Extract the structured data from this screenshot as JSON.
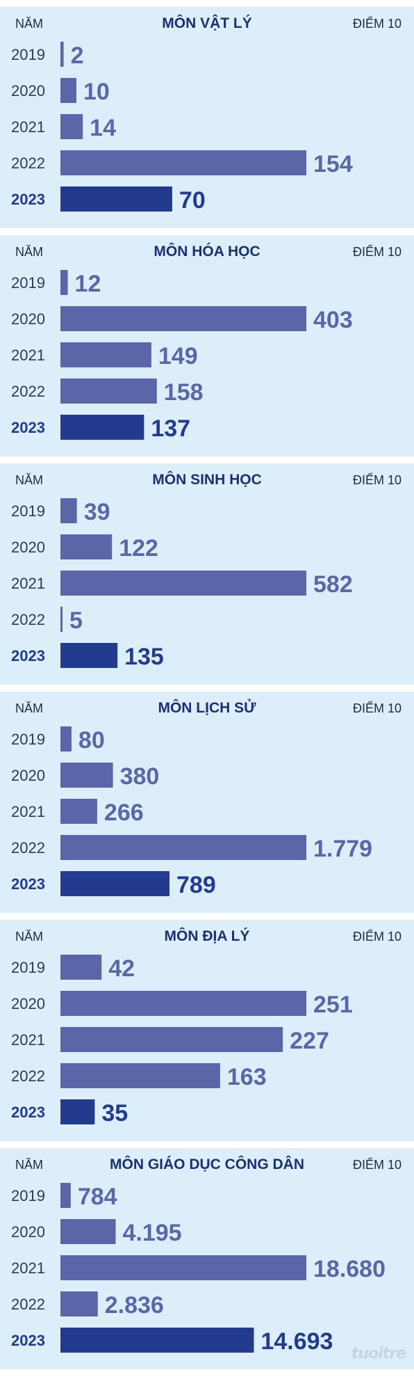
{
  "header": {
    "left": "NĂM",
    "right": "ĐIỂM 10"
  },
  "colors": {
    "bar": "#5b66a8",
    "highlight": "#223b8e",
    "background": "#dceef9",
    "label": "#5b66a8",
    "highlight_label": "#223b8e",
    "year": "#2f3a57"
  },
  "logo": "tuoitre",
  "chart_data": [
    {
      "type": "bar",
      "orientation": "horizontal",
      "title": "MÔN VẬT LÝ",
      "categories": [
        "2019",
        "2020",
        "2021",
        "2022",
        "2023"
      ],
      "values": [
        2,
        10,
        14,
        154,
        70
      ],
      "labels": [
        "2",
        "10",
        "14",
        "154",
        "70"
      ],
      "highlight": "2023",
      "xlim": [
        0,
        154
      ]
    },
    {
      "type": "bar",
      "orientation": "horizontal",
      "title": "MÔN HÓA HỌC",
      "categories": [
        "2019",
        "2020",
        "2021",
        "2022",
        "2023"
      ],
      "values": [
        12,
        403,
        149,
        158,
        137
      ],
      "labels": [
        "12",
        "403",
        "149",
        "158",
        "137"
      ],
      "highlight": "2023",
      "xlim": [
        0,
        403
      ]
    },
    {
      "type": "bar",
      "orientation": "horizontal",
      "title": "MÔN SINH HỌC",
      "categories": [
        "2019",
        "2020",
        "2021",
        "2022",
        "2023"
      ],
      "values": [
        39,
        122,
        582,
        5,
        135
      ],
      "labels": [
        "39",
        "122",
        "582",
        "5",
        "135"
      ],
      "highlight": "2023",
      "xlim": [
        0,
        582
      ]
    },
    {
      "type": "bar",
      "orientation": "horizontal",
      "title": "MÔN LỊCH SỬ",
      "categories": [
        "2019",
        "2020",
        "2021",
        "2022",
        "2023"
      ],
      "values": [
        80,
        380,
        266,
        1779,
        789
      ],
      "labels": [
        "80",
        "380",
        "266",
        "1.779",
        "789"
      ],
      "highlight": "2023",
      "xlim": [
        0,
        1779
      ]
    },
    {
      "type": "bar",
      "orientation": "horizontal",
      "title": "MÔN ĐỊA LÝ",
      "categories": [
        "2019",
        "2020",
        "2021",
        "2022",
        "2023"
      ],
      "values": [
        42,
        251,
        227,
        163,
        35
      ],
      "labels": [
        "42",
        "251",
        "227",
        "163",
        "35"
      ],
      "highlight": "2023",
      "xlim": [
        0,
        251
      ]
    },
    {
      "type": "bar",
      "orientation": "horizontal",
      "title": "MÔN GIÁO DỤC CÔNG DÂN",
      "categories": [
        "2019",
        "2020",
        "2021",
        "2022",
        "2023"
      ],
      "values": [
        784,
        4195,
        18680,
        2836,
        14693
      ],
      "labels": [
        "784",
        "4.195",
        "18.680",
        "2.836",
        "14.693"
      ],
      "highlight": "2023",
      "xlim": [
        0,
        18680
      ]
    }
  ]
}
